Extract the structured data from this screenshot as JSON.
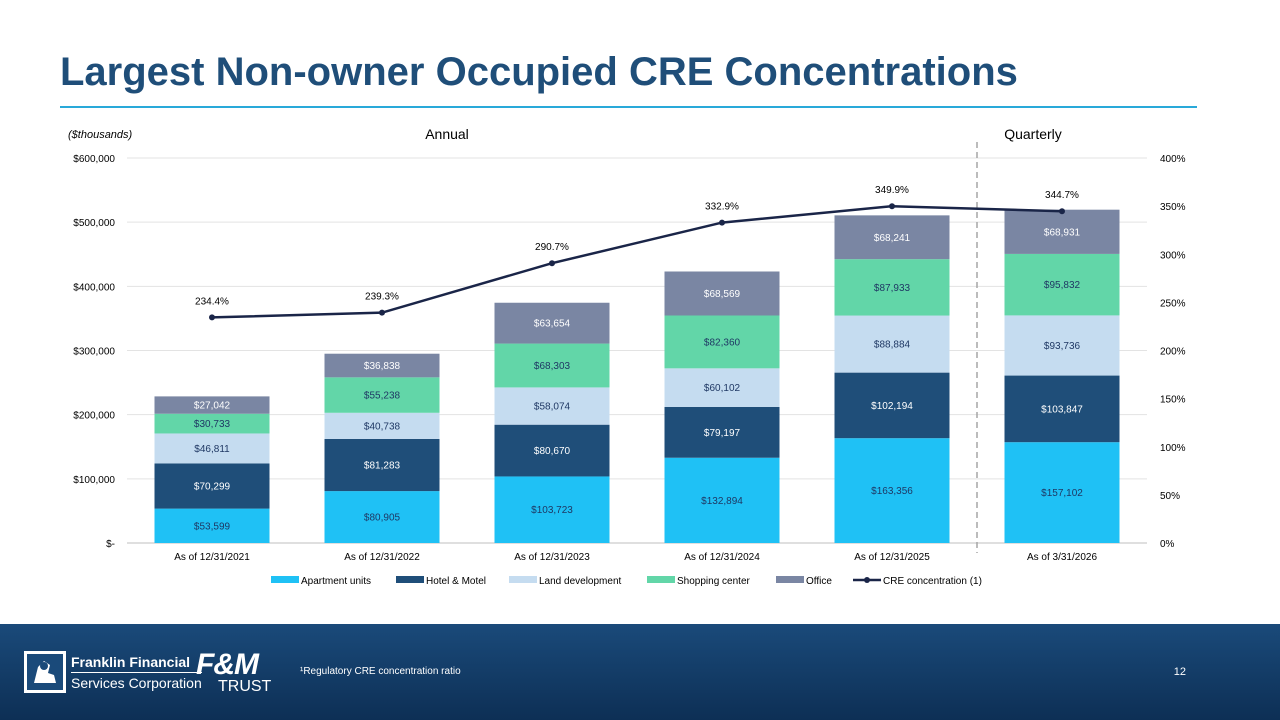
{
  "slide": {
    "title": "Largest Non-owner Occupied CRE Concentrations",
    "footnote": "¹Regulatory CRE concentration ratio",
    "page_number": "12",
    "logo_franklin_line1": "Franklin Financial",
    "logo_franklin_line2": "Services Corporation",
    "logo_fm": "F&M",
    "logo_trust": "TRUST"
  },
  "chart_data": {
    "type": "bar",
    "stacked": true,
    "units_note": "($thousands)",
    "section_labels": [
      "Annual",
      "Quarterly"
    ],
    "categories": [
      "As of 12/31/2021",
      "As of 12/31/2022",
      "As of 12/31/2023",
      "As of 12/31/2024",
      "As of 12/31/2025",
      "As of 3/31/2026"
    ],
    "series": [
      {
        "name": "Apartment units",
        "color": "#1fc1f5",
        "label_color": "#1f3864",
        "values": [
          53599,
          80905,
          103723,
          132894,
          163356,
          157102
        ],
        "labels": [
          "$53,599",
          "$80,905",
          "$103,723",
          "$132,894",
          "$163,356",
          "$157,102"
        ]
      },
      {
        "name": "Hotel & Motel",
        "color": "#1f4e79",
        "label_color": "#ffffff",
        "values": [
          70299,
          81283,
          80670,
          79197,
          102194,
          103847
        ],
        "labels": [
          "$70,299",
          "$81,283",
          "$80,670",
          "$79,197",
          "$102,194",
          "$103,847"
        ]
      },
      {
        "name": "Land development",
        "color": "#c5dcf0",
        "label_color": "#1f3864",
        "values": [
          46811,
          40738,
          58074,
          60102,
          88884,
          93736
        ],
        "labels": [
          "$46,811",
          "$40,738",
          "$58,074",
          "$60,102",
          "$88,884",
          "$93,736"
        ]
      },
      {
        "name": "Shopping center",
        "color": "#62d6a8",
        "label_color": "#1f3864",
        "values": [
          30733,
          55238,
          68303,
          82360,
          87933,
          95832
        ],
        "labels": [
          "$30,733",
          "$55,238",
          "$68,303",
          "$82,360",
          "$87,933",
          "$95,832"
        ]
      },
      {
        "name": "Office",
        "color": "#7a86a3",
        "label_color": "#ffffff",
        "values": [
          27042,
          36838,
          63654,
          68569,
          68241,
          68931
        ],
        "labels": [
          "$27,042",
          "$36,838",
          "$63,654",
          "$68,569",
          "$68,241",
          "$68,931"
        ]
      }
    ],
    "line_series": {
      "name": "CRE concentration (1)",
      "color": "#1a2548",
      "values": [
        234.4,
        239.3,
        290.7,
        332.9,
        349.9,
        344.7
      ],
      "labels": [
        "234.4%",
        "239.3%",
        "290.7%",
        "332.9%",
        "349.9%",
        "344.7%"
      ]
    },
    "y_left": {
      "min": 0,
      "max": 600000,
      "ticks": [
        "$-",
        "$100,000",
        "$200,000",
        "$300,000",
        "$400,000",
        "$500,000",
        "$600,000"
      ]
    },
    "y_right": {
      "min": 0,
      "max": 400,
      "ticks": [
        "0%",
        "50%",
        "100%",
        "150%",
        "200%",
        "250%",
        "300%",
        "350%",
        "400%"
      ]
    },
    "grid": true,
    "legend": "bottom"
  }
}
